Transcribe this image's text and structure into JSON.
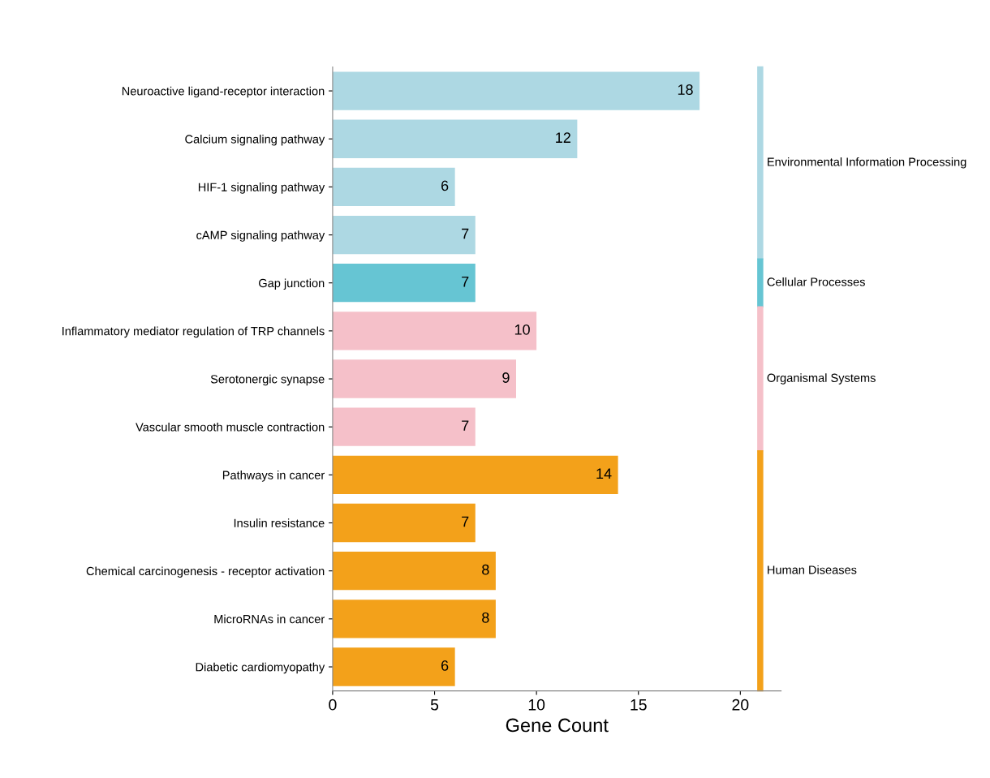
{
  "chart_data": {
    "type": "bar",
    "orientation": "horizontal",
    "xlabel": "Gene Count",
    "categories": [
      "Neuroactive ligand-receptor interaction",
      "Calcium signaling pathway",
      "HIF-1 signaling pathway",
      "cAMP signaling pathway",
      "Gap junction",
      "Inflammatory mediator regulation of TRP channels",
      "Serotonergic synapse",
      "Vascular smooth muscle contraction",
      "Pathways in cancer",
      "Insulin resistance",
      "Chemical carcinogenesis - receptor activation",
      "MicroRNAs in cancer",
      "Diabetic cardiomyopathy"
    ],
    "series": [
      {
        "name": "Environmental Information Processing",
        "color": "#add8e3",
        "values": [
          18,
          12,
          6,
          7,
          null,
          null,
          null,
          null,
          null,
          null,
          null,
          null,
          null
        ]
      },
      {
        "name": "Cellular Processes",
        "color": "#66c5d3",
        "values": [
          null,
          null,
          null,
          null,
          7,
          null,
          null,
          null,
          null,
          null,
          null,
          null,
          null
        ]
      },
      {
        "name": "Organismal Systems",
        "color": "#f5c0c9",
        "values": [
          null,
          null,
          null,
          null,
          null,
          10,
          9,
          7,
          null,
          null,
          null,
          null,
          null
        ]
      },
      {
        "name": "Human Diseases",
        "color": "#f3a11a",
        "values": [
          null,
          null,
          null,
          null,
          null,
          null,
          null,
          null,
          14,
          7,
          8,
          8,
          6
        ]
      }
    ],
    "xlim": [
      0,
      22
    ],
    "xticks": [
      0,
      5,
      10,
      15,
      20
    ],
    "data_labels": true,
    "grid": false,
    "legend": "right"
  }
}
